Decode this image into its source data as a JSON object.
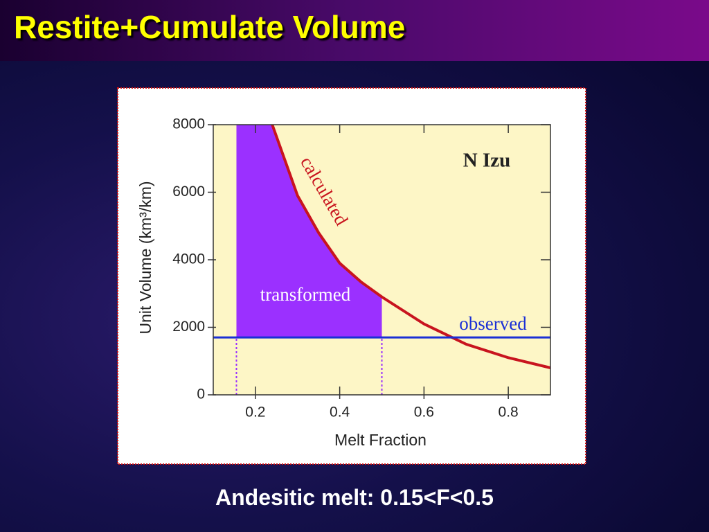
{
  "slide": {
    "title": "Restite+Cumulate Volume",
    "caption": "Andesitic melt: 0.15<F<0.5"
  },
  "chart_data": {
    "type": "line",
    "annotation": "N Izu",
    "xlabel": "Melt Fraction",
    "ylabel": "Unit Volume (km³/km)",
    "xlim": [
      0.1,
      0.9
    ],
    "xticks": [
      0.2,
      0.4,
      0.6,
      0.8
    ],
    "ylim": [
      0,
      8000
    ],
    "yticks": [
      0,
      2000,
      4000,
      6000,
      8000
    ],
    "series": [
      {
        "name": "transformed",
        "type": "area",
        "color": "#9b30ff",
        "x": [
          0.155,
          0.24,
          0.3,
          0.35,
          0.4,
          0.45,
          0.5
        ],
        "values": [
          8000,
          8000,
          5900,
          4800,
          3900,
          3350,
          2900
        ]
      },
      {
        "name": "calculated",
        "type": "line",
        "color": "#c8141e",
        "x": [
          0.24,
          0.3,
          0.35,
          0.4,
          0.45,
          0.5,
          0.6,
          0.7,
          0.8,
          0.9
        ],
        "values": [
          8000,
          5900,
          4800,
          3900,
          3350,
          2900,
          2100,
          1500,
          1100,
          800
        ]
      },
      {
        "name": "observed",
        "type": "line",
        "color": "#1a2fd6",
        "x": [
          0.1,
          0.9
        ],
        "values": [
          1700,
          1700
        ]
      }
    ]
  }
}
